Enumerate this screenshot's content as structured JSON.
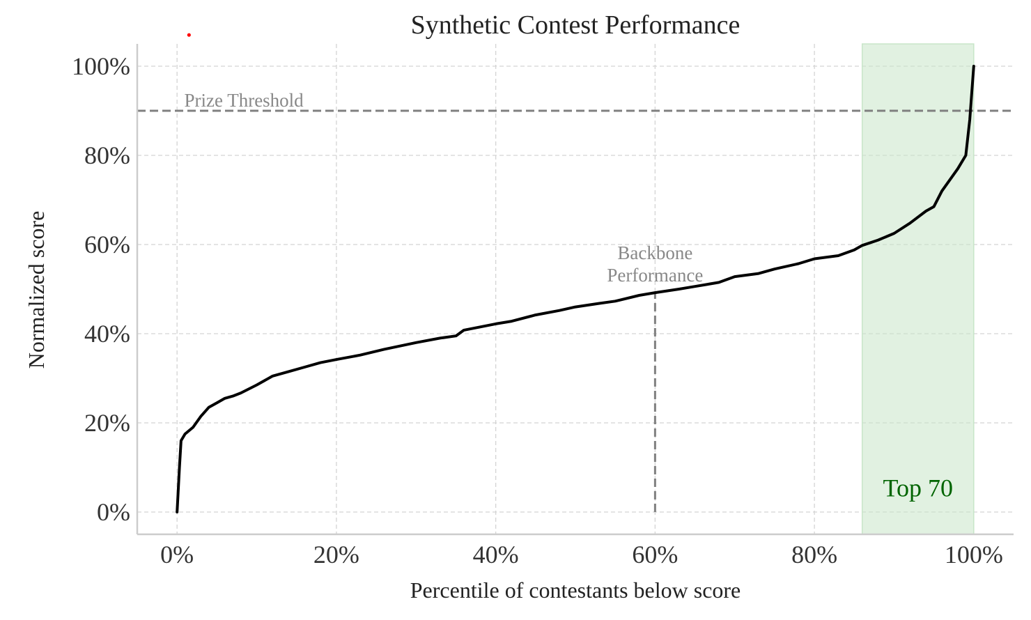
{
  "chart_data": {
    "type": "line",
    "title": "Synthetic Contest Performance",
    "xlabel": "Percentile of contestants below score",
    "ylabel": "Normalized score",
    "xlim": [
      -5,
      105
    ],
    "ylim": [
      -5,
      105
    ],
    "x_ticks": [
      0,
      20,
      40,
      60,
      80,
      100
    ],
    "x_tick_labels": [
      "0%",
      "20%",
      "40%",
      "60%",
      "80%",
      "100%"
    ],
    "y_ticks": [
      0,
      20,
      40,
      60,
      80,
      100
    ],
    "y_tick_labels": [
      "0%",
      "20%",
      "40%",
      "60%",
      "80%",
      "100%"
    ],
    "grid": true,
    "series": [
      {
        "color": "#000000",
        "x": [
          0,
          0.3,
          0.5,
          1,
          2,
          3,
          4,
          5,
          6,
          7,
          8,
          10,
          12,
          14,
          16,
          18,
          20,
          23,
          26,
          30,
          33,
          35,
          36,
          38,
          40,
          42,
          45,
          48,
          50,
          53,
          55,
          58,
          60,
          63,
          65,
          68,
          70,
          73,
          75,
          78,
          80,
          83,
          85,
          86,
          88,
          90,
          92,
          94,
          95,
          96,
          97,
          98,
          99,
          99.5,
          100
        ],
        "y": [
          0,
          10,
          16,
          17.5,
          19,
          21.5,
          23.5,
          24.5,
          25.5,
          26,
          26.7,
          28.5,
          30.5,
          31.5,
          32.5,
          33.5,
          34.2,
          35.2,
          36.5,
          38,
          39,
          39.5,
          40.8,
          41.5,
          42.2,
          42.8,
          44.2,
          45.2,
          46,
          46.8,
          47.3,
          48.6,
          49.2,
          50,
          50.6,
          51.5,
          52.8,
          53.5,
          54.5,
          55.7,
          56.8,
          57.5,
          58.8,
          59.8,
          61,
          62.5,
          64.8,
          67.5,
          68.5,
          72,
          74.5,
          77,
          80,
          88,
          100
        ]
      }
    ],
    "reference_lines": [
      {
        "orientation": "horizontal",
        "y": 90,
        "label": "Prize Threshold"
      },
      {
        "orientation": "vertical",
        "x": 60,
        "y_max": 49.2,
        "label_lines": [
          "Backbone",
          "Performance"
        ]
      }
    ],
    "shaded_region": {
      "x_start": 86,
      "x_end": 100,
      "color": "#c8e6c9",
      "label": "Top 70",
      "label_color": "#006400"
    },
    "marker": {
      "x": 1.5,
      "y": 107,
      "color": "#ff0000"
    }
  }
}
